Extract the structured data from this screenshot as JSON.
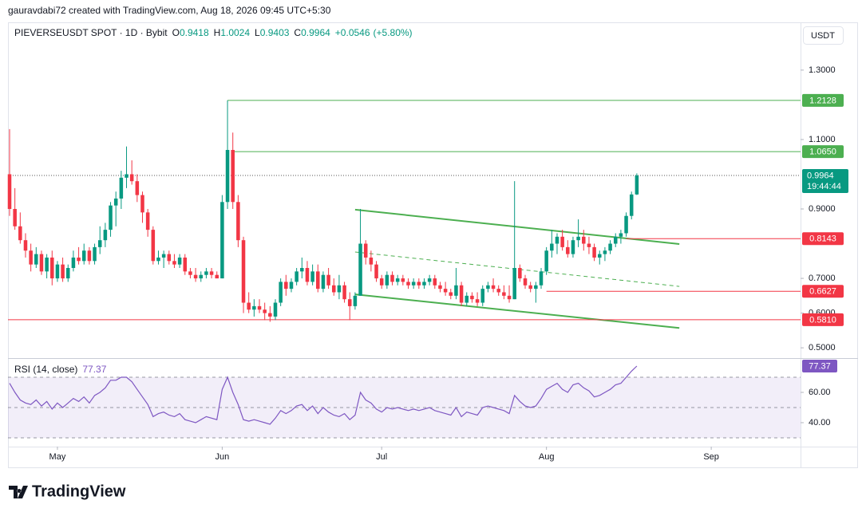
{
  "chart_data": {
    "type": "candlestick",
    "header": {
      "credit": "gauravdabi72 created with TradingView.com, Aug 18, 2026 09:45 UTC+5:30",
      "symbol": "PIEVERSEUSDT SPOT · 1D · Bybit",
      "letters": [
        "O",
        "H",
        "L",
        "C"
      ],
      "change": "+0.0546",
      "change_pct": "(+5.80%)"
    },
    "currency": "USDT",
    "up_color": "#089981",
    "down_color": "#f23645",
    "candles": [
      [
        1.0,
        1.13,
        0.88,
        0.9
      ],
      [
        0.9,
        0.96,
        0.84,
        0.85
      ],
      [
        0.85,
        0.89,
        0.8,
        0.81
      ],
      [
        0.81,
        0.83,
        0.76,
        0.78
      ],
      [
        0.78,
        0.8,
        0.72,
        0.74
      ],
      [
        0.74,
        0.79,
        0.73,
        0.77
      ],
      [
        0.77,
        0.78,
        0.71,
        0.72
      ],
      [
        0.72,
        0.77,
        0.7,
        0.76
      ],
      [
        0.76,
        0.78,
        0.68,
        0.7
      ],
      [
        0.7,
        0.75,
        0.69,
        0.74
      ],
      [
        0.74,
        0.76,
        0.69,
        0.7
      ],
      [
        0.7,
        0.74,
        0.69,
        0.73
      ],
      [
        0.73,
        0.78,
        0.72,
        0.76
      ],
      [
        0.76,
        0.79,
        0.74,
        0.75
      ],
      [
        0.75,
        0.8,
        0.74,
        0.78
      ],
      [
        0.78,
        0.79,
        0.74,
        0.75
      ],
      [
        0.75,
        0.8,
        0.74,
        0.79
      ],
      [
        0.79,
        0.85,
        0.77,
        0.81
      ],
      [
        0.81,
        0.86,
        0.79,
        0.84
      ],
      [
        0.84,
        0.92,
        0.82,
        0.91
      ],
      [
        0.91,
        0.95,
        0.85,
        0.93
      ],
      [
        0.93,
        1.01,
        0.9,
        0.99
      ],
      [
        0.99,
        1.08,
        0.96,
        1.0
      ],
      [
        1.0,
        1.04,
        0.97,
        0.98
      ],
      [
        0.98,
        1.0,
        0.92,
        0.94
      ],
      [
        0.94,
        0.95,
        0.86,
        0.89
      ],
      [
        0.89,
        0.9,
        0.82,
        0.84
      ],
      [
        0.84,
        0.85,
        0.74,
        0.75
      ],
      [
        0.75,
        0.78,
        0.74,
        0.76
      ],
      [
        0.76,
        0.78,
        0.73,
        0.77
      ],
      [
        0.77,
        0.78,
        0.74,
        0.75
      ],
      [
        0.75,
        0.77,
        0.73,
        0.74
      ],
      [
        0.74,
        0.77,
        0.73,
        0.76
      ],
      [
        0.76,
        0.77,
        0.71,
        0.72
      ],
      [
        0.72,
        0.73,
        0.7,
        0.71
      ],
      [
        0.71,
        0.73,
        0.69,
        0.7
      ],
      [
        0.7,
        0.72,
        0.69,
        0.71
      ],
      [
        0.71,
        0.73,
        0.7,
        0.72
      ],
      [
        0.72,
        0.73,
        0.7,
        0.71
      ],
      [
        0.71,
        0.72,
        0.7,
        0.7
      ],
      [
        0.7,
        0.94,
        0.7,
        0.92
      ],
      [
        0.92,
        1.2128,
        0.9,
        1.07
      ],
      [
        1.07,
        1.12,
        0.9,
        0.92
      ],
      [
        0.92,
        0.94,
        0.79,
        0.81
      ],
      [
        0.81,
        0.82,
        0.6,
        0.63
      ],
      [
        0.63,
        0.66,
        0.6,
        0.61
      ],
      [
        0.61,
        0.64,
        0.59,
        0.62
      ],
      [
        0.62,
        0.64,
        0.6,
        0.61
      ],
      [
        0.61,
        0.63,
        0.58,
        0.6
      ],
      [
        0.6,
        0.62,
        0.575,
        0.59
      ],
      [
        0.59,
        0.64,
        0.58,
        0.63
      ],
      [
        0.63,
        0.7,
        0.62,
        0.69
      ],
      [
        0.69,
        0.71,
        0.65,
        0.67
      ],
      [
        0.67,
        0.7,
        0.66,
        0.69
      ],
      [
        0.69,
        0.73,
        0.68,
        0.72
      ],
      [
        0.72,
        0.76,
        0.7,
        0.73
      ],
      [
        0.73,
        0.75,
        0.68,
        0.69
      ],
      [
        0.69,
        0.74,
        0.68,
        0.72
      ],
      [
        0.72,
        0.74,
        0.66,
        0.67
      ],
      [
        0.67,
        0.72,
        0.66,
        0.71
      ],
      [
        0.71,
        0.73,
        0.67,
        0.68
      ],
      [
        0.68,
        0.7,
        0.65,
        0.66
      ],
      [
        0.66,
        0.71,
        0.64,
        0.68
      ],
      [
        0.68,
        0.69,
        0.63,
        0.64
      ],
      [
        0.64,
        0.66,
        0.58,
        0.62
      ],
      [
        0.62,
        0.66,
        0.61,
        0.65
      ],
      [
        0.65,
        0.9,
        0.65,
        0.8
      ],
      [
        0.8,
        0.81,
        0.74,
        0.76
      ],
      [
        0.76,
        0.78,
        0.72,
        0.74
      ],
      [
        0.74,
        0.75,
        0.69,
        0.7
      ],
      [
        0.7,
        0.71,
        0.67,
        0.68
      ],
      [
        0.68,
        0.72,
        0.67,
        0.71
      ],
      [
        0.71,
        0.72,
        0.68,
        0.69
      ],
      [
        0.69,
        0.71,
        0.68,
        0.7
      ],
      [
        0.7,
        0.71,
        0.68,
        0.69
      ],
      [
        0.69,
        0.7,
        0.67,
        0.68
      ],
      [
        0.68,
        0.7,
        0.67,
        0.69
      ],
      [
        0.69,
        0.7,
        0.67,
        0.68
      ],
      [
        0.68,
        0.7,
        0.67,
        0.69
      ],
      [
        0.69,
        0.71,
        0.68,
        0.7
      ],
      [
        0.7,
        0.71,
        0.67,
        0.68
      ],
      [
        0.68,
        0.69,
        0.66,
        0.67
      ],
      [
        0.67,
        0.69,
        0.65,
        0.66
      ],
      [
        0.66,
        0.67,
        0.64,
        0.65
      ],
      [
        0.65,
        0.73,
        0.64,
        0.68
      ],
      [
        0.68,
        0.69,
        0.62,
        0.63
      ],
      [
        0.63,
        0.66,
        0.62,
        0.65
      ],
      [
        0.65,
        0.66,
        0.63,
        0.64
      ],
      [
        0.64,
        0.66,
        0.62,
        0.63
      ],
      [
        0.63,
        0.68,
        0.62,
        0.67
      ],
      [
        0.67,
        0.69,
        0.66,
        0.68
      ],
      [
        0.68,
        0.7,
        0.66,
        0.67
      ],
      [
        0.67,
        0.68,
        0.65,
        0.66
      ],
      [
        0.66,
        0.68,
        0.64,
        0.65
      ],
      [
        0.65,
        0.68,
        0.63,
        0.64
      ],
      [
        0.64,
        0.98,
        0.64,
        0.73
      ],
      [
        0.73,
        0.74,
        0.69,
        0.7
      ],
      [
        0.7,
        0.71,
        0.67,
        0.68
      ],
      [
        0.68,
        0.69,
        0.66,
        0.67
      ],
      [
        0.67,
        0.69,
        0.63,
        0.68
      ],
      [
        0.68,
        0.73,
        0.67,
        0.72
      ],
      [
        0.72,
        0.79,
        0.71,
        0.78
      ],
      [
        0.78,
        0.84,
        0.76,
        0.8
      ],
      [
        0.8,
        0.83,
        0.77,
        0.82
      ],
      [
        0.82,
        0.84,
        0.78,
        0.79
      ],
      [
        0.79,
        0.81,
        0.76,
        0.77
      ],
      [
        0.77,
        0.82,
        0.76,
        0.81
      ],
      [
        0.81,
        0.87,
        0.79,
        0.82
      ],
      [
        0.82,
        0.84,
        0.78,
        0.8
      ],
      [
        0.8,
        0.82,
        0.77,
        0.79
      ],
      [
        0.79,
        0.8,
        0.75,
        0.76
      ],
      [
        0.76,
        0.78,
        0.74,
        0.77
      ],
      [
        0.77,
        0.79,
        0.75,
        0.78
      ],
      [
        0.78,
        0.81,
        0.77,
        0.8
      ],
      [
        0.8,
        0.83,
        0.79,
        0.82
      ],
      [
        0.82,
        0.84,
        0.8,
        0.83
      ],
      [
        0.83,
        0.89,
        0.82,
        0.88
      ],
      [
        0.88,
        0.95,
        0.87,
        0.9418
      ],
      [
        0.9418,
        1.0024,
        0.9403,
        0.9964
      ]
    ],
    "ylim": [
      0.475,
      1.433
    ],
    "yticks": [
      {
        "value": 1.3,
        "label": "1.3000"
      },
      {
        "value": 1.1,
        "label": "1.1000"
      },
      {
        "value": 0.9,
        "label": "0.9000"
      },
      {
        "value": 0.7,
        "label": "0.7000"
      },
      {
        "value": 0.6,
        "label": "0.6000"
      },
      {
        "value": 0.5,
        "label": "0.5000"
      }
    ],
    "xlim": [
      -0.3,
      148.8
    ],
    "xticks": [
      {
        "value": 9,
        "label": "May"
      },
      {
        "value": 40,
        "label": "Jun"
      },
      {
        "value": 70,
        "label": "Jul"
      },
      {
        "value": 101,
        "label": "Aug"
      },
      {
        "value": 132,
        "label": "Sep"
      }
    ],
    "grid": false,
    "levels": [
      {
        "value": 1.2128,
        "from": 41,
        "color": "#4caf50"
      },
      {
        "value": 1.065,
        "label": "1.0650",
        "from": 42,
        "color": "#4caf50"
      },
      {
        "value": 0.8143,
        "from": 116,
        "color": "#f23645"
      },
      {
        "value": 0.6627,
        "from": 101,
        "color": "#f23645"
      },
      {
        "value": 0.581,
        "label": "0.5810",
        "from": -0.3,
        "color": "#f23645"
      }
    ],
    "countdown": "19:44:44",
    "trendlines": [
      {
        "x": [
          65,
          126
        ],
        "y": [
          0.898,
          0.799
        ],
        "color": "#4caf50",
        "dashed": false
      },
      {
        "x": [
          65,
          126
        ],
        "y": [
          0.776,
          0.677
        ],
        "color": "#4caf50",
        "dashed": true
      },
      {
        "x": [
          65,
          126
        ],
        "y": [
          0.654,
          0.557
        ],
        "color": "#4caf50",
        "dashed": false
      }
    ],
    "rsi": {
      "title": "RSI (14, close)",
      "color": "#7e57c2",
      "values": [
        66,
        60,
        55,
        53,
        52,
        55,
        51,
        54,
        49,
        53,
        50,
        53,
        56,
        54,
        57,
        53,
        58,
        60,
        63,
        68,
        68,
        70,
        70,
        67,
        62,
        57,
        52,
        44,
        46,
        47,
        45,
        44,
        46,
        42,
        41,
        40,
        42,
        44,
        43,
        42,
        62,
        70,
        60,
        52,
        42,
        41,
        42,
        41,
        40,
        39,
        43,
        48,
        46,
        48,
        51,
        52,
        48,
        51,
        46,
        50,
        47,
        45,
        44,
        46,
        42,
        45,
        60,
        55,
        53,
        49,
        47,
        50,
        49,
        50,
        49,
        48,
        49,
        48,
        49,
        50,
        48,
        47,
        46,
        45,
        50,
        44,
        47,
        46,
        45,
        50,
        51,
        50,
        49,
        48,
        46,
        58,
        54,
        51,
        50,
        51,
        56,
        62,
        64,
        66,
        62,
        60,
        65,
        66,
        63,
        61,
        57,
        58,
        60,
        62,
        65,
        66,
        70,
        74,
        77.37
      ],
      "ylim": [
        24.2,
        82.1
      ],
      "yticks": [
        {
          "value": 60,
          "label": "60.00"
        },
        {
          "value": 40,
          "label": "40.00"
        }
      ],
      "levels": [
        70,
        50,
        30
      ]
    },
    "logo": "TradingView"
  }
}
